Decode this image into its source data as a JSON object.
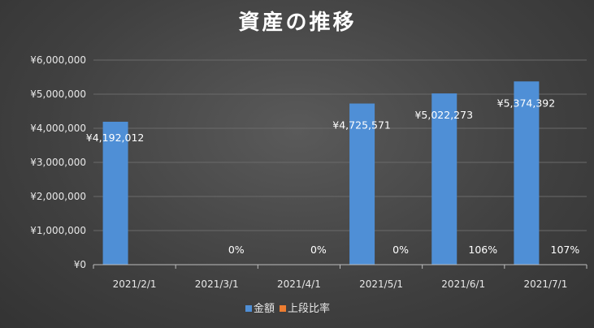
{
  "chart_data": {
    "type": "bar",
    "title": "資産の推移",
    "categories": [
      "2021/2/1",
      "2021/3/1",
      "2021/4/1",
      "2021/5/1",
      "2021/6/1",
      "2021/7/1"
    ],
    "series": [
      {
        "name": "金額",
        "values": [
          4192012,
          0,
          0,
          4725571,
          5022273,
          5374392
        ],
        "labels": [
          "¥4,192,012",
          "",
          "",
          "¥4,725,571",
          "¥5,022,273",
          "¥5,374,392"
        ],
        "color": "#4f8fd6"
      },
      {
        "name": "上段比率",
        "values": [
          null,
          0,
          0,
          0,
          106,
          107
        ],
        "labels": [
          "",
          "0%",
          "0%",
          "0%",
          "106%",
          "107%"
        ],
        "color": "#ed7d31"
      }
    ],
    "yticks": [
      "¥0",
      "¥1,000,000",
      "¥2,000,000",
      "¥3,000,000",
      "¥4,000,000",
      "¥5,000,000",
      "¥6,000,000"
    ],
    "ylim": [
      0,
      6000000
    ],
    "grid": true,
    "legend_position": "bottom"
  }
}
